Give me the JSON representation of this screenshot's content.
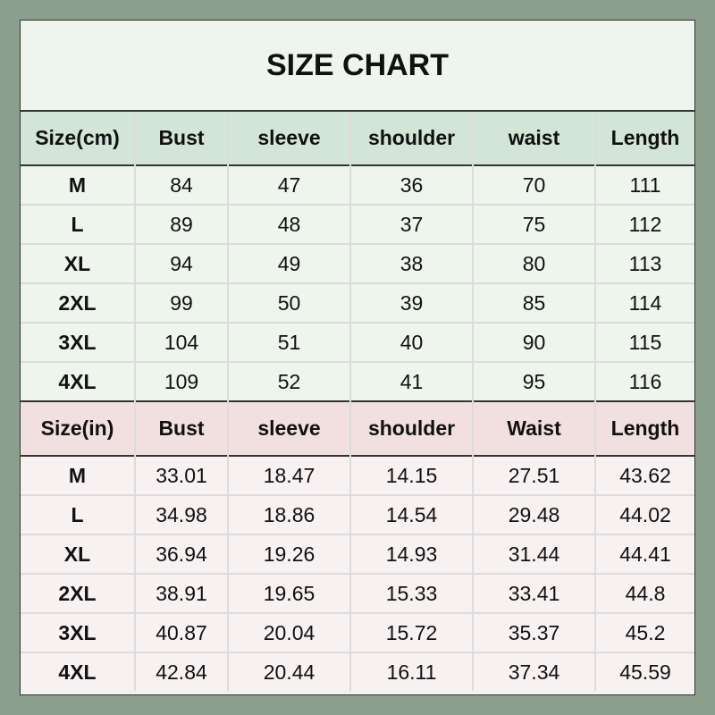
{
  "title": "SIZE CHART",
  "cm_table": {
    "headers": [
      "Size(cm)",
      "Bust",
      "sleeve",
      "shoulder",
      "waist",
      "Length"
    ],
    "rows": [
      [
        "M",
        "84",
        "47",
        "36",
        "70",
        "111"
      ],
      [
        "L",
        "89",
        "48",
        "37",
        "75",
        "112"
      ],
      [
        "XL",
        "94",
        "49",
        "38",
        "80",
        "113"
      ],
      [
        "2XL",
        "99",
        "50",
        "39",
        "85",
        "114"
      ],
      [
        "3XL",
        "104",
        "51",
        "40",
        "90",
        "115"
      ],
      [
        "4XL",
        "109",
        "52",
        "41",
        "95",
        "116"
      ]
    ]
  },
  "in_table": {
    "headers": [
      "Size(in)",
      "Bust",
      "sleeve",
      "shoulder",
      "Waist",
      "Length"
    ],
    "rows": [
      [
        "M",
        "33.01",
        "18.47",
        "14.15",
        "27.51",
        "43.62"
      ],
      [
        "L",
        "34.98",
        "18.86",
        "14.54",
        "29.48",
        "44.02"
      ],
      [
        "XL",
        "36.94",
        "19.26",
        "14.93",
        "31.44",
        "44.41"
      ],
      [
        "2XL",
        "38.91",
        "19.65",
        "15.33",
        "33.41",
        "44.8"
      ],
      [
        "3XL",
        "40.87",
        "20.04",
        "15.72",
        "35.37",
        "45.2"
      ],
      [
        "4XL",
        "42.84",
        "20.44",
        "16.11",
        "37.34",
        "45.59"
      ]
    ]
  },
  "colors": {
    "background": "#8c9e8c",
    "cm_header": "#d2e5d6",
    "cm_rows": "#edf5ed",
    "in_header": "#f2e0e0",
    "in_rows": "#f7f1f1"
  }
}
